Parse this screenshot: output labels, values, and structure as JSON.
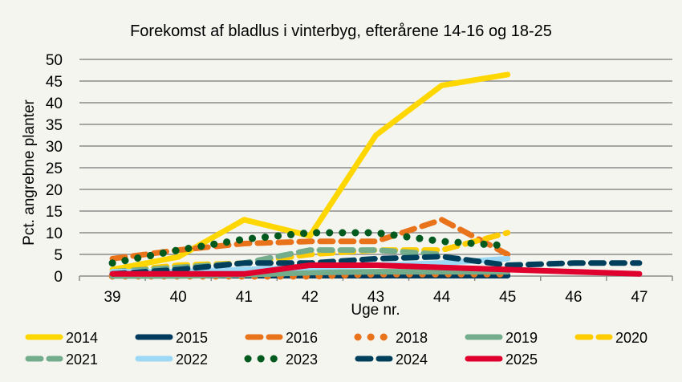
{
  "chart_data": {
    "type": "line",
    "title": "Forekomst af bladlus  i vinterbyg,  efterårene 14-16 og 18-25",
    "xlabel": "Uge nr.",
    "ylabel": "Pct. angrebne planter",
    "ylim": [
      0,
      50
    ],
    "yticks": [
      0,
      5,
      10,
      15,
      20,
      25,
      30,
      35,
      40,
      45,
      50
    ],
    "categories": [
      "39",
      "40",
      "41",
      "42",
      "43",
      "44",
      "45",
      "46",
      "47"
    ],
    "grid": true,
    "legend": "bottom",
    "series": [
      {
        "name": "2014",
        "color": "#ffd700",
        "dash": "solid",
        "values": [
          1.5,
          4.4,
          13,
          9.3,
          32.5,
          44,
          46.5,
          null,
          null
        ]
      },
      {
        "name": "2015",
        "color": "#003a5c",
        "dash": "solid",
        "values": [
          0.1,
          0.1,
          0.1,
          0.1,
          0.1,
          0.1,
          0.1,
          null,
          null
        ]
      },
      {
        "name": "2016",
        "color": "#e8731a",
        "dash": "dash",
        "values": [
          4,
          6,
          7.5,
          8,
          8,
          13,
          5,
          null,
          null
        ]
      },
      {
        "name": "2018",
        "color": "#e8731a",
        "dash": "dot",
        "values": [
          0,
          0,
          0,
          0,
          0.5,
          0.5,
          0.5,
          null,
          null
        ]
      },
      {
        "name": "2019",
        "color": "#74ad8c",
        "dash": "solid",
        "values": [
          0,
          0,
          0.3,
          0.8,
          1,
          1,
          1,
          null,
          null
        ]
      },
      {
        "name": "2020",
        "color": "#ffcc00",
        "dash": "dash",
        "values": [
          1,
          2.5,
          3,
          5,
          6,
          6,
          10,
          null,
          null
        ]
      },
      {
        "name": "2021",
        "color": "#74ad8c",
        "dash": "dash",
        "values": [
          1,
          2,
          3,
          6,
          6,
          5,
          null,
          null,
          null
        ]
      },
      {
        "name": "2022",
        "color": "#9dd8f5",
        "dash": "solid",
        "values": [
          1,
          1,
          1.5,
          2,
          2.5,
          3,
          4,
          null,
          null
        ]
      },
      {
        "name": "2023",
        "color": "#005a1e",
        "dash": "dot",
        "values": [
          3,
          6,
          8.5,
          10,
          10,
          8,
          7,
          null,
          null
        ]
      },
      {
        "name": "2024",
        "color": "#003f5c",
        "dash": "dash",
        "values": [
          0.5,
          1.5,
          3,
          3,
          4,
          4.5,
          2.5,
          3,
          3
        ]
      },
      {
        "name": "2025",
        "color": "#e0002d",
        "dash": "solid",
        "values": [
          0.5,
          0.5,
          0.5,
          2.5,
          2.5,
          2,
          1.5,
          1,
          0.5
        ]
      }
    ]
  }
}
